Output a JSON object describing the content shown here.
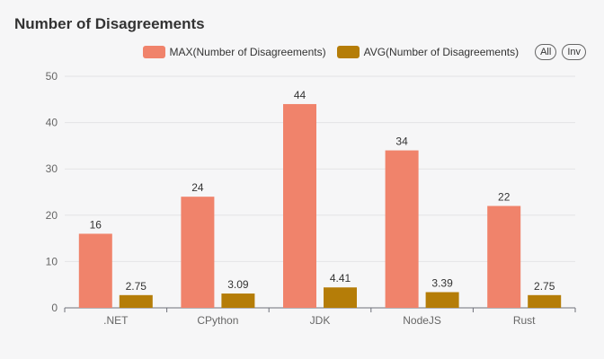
{
  "header": {
    "title": "Number of Disagreements"
  },
  "legend": {
    "all_label": "All",
    "inv_label": "Inv"
  },
  "chart_data": {
    "type": "bar",
    "title": "Number of Disagreements",
    "categories": [
      ".NET",
      "CPython",
      "JDK",
      "NodeJS",
      "Rust"
    ],
    "series": [
      {
        "name": "MAX(Number of Disagreements)",
        "values": [
          16,
          24,
          44,
          34,
          22
        ],
        "labels": [
          "16",
          "24",
          "44",
          "34",
          "22"
        ],
        "color": "#f0836b"
      },
      {
        "name": "AVG(Number of Disagreements)",
        "values": [
          2.75,
          3.09,
          4.41,
          3.39,
          2.75
        ],
        "labels": [
          "2.75",
          "3.09",
          "4.41",
          "3.39",
          "2.75"
        ],
        "color": "#b57d08"
      }
    ],
    "ylim": [
      0,
      50
    ],
    "yticks": [
      "0",
      "10",
      "20",
      "30",
      "40",
      "50"
    ],
    "grid": true,
    "legend_position": "top-right"
  }
}
